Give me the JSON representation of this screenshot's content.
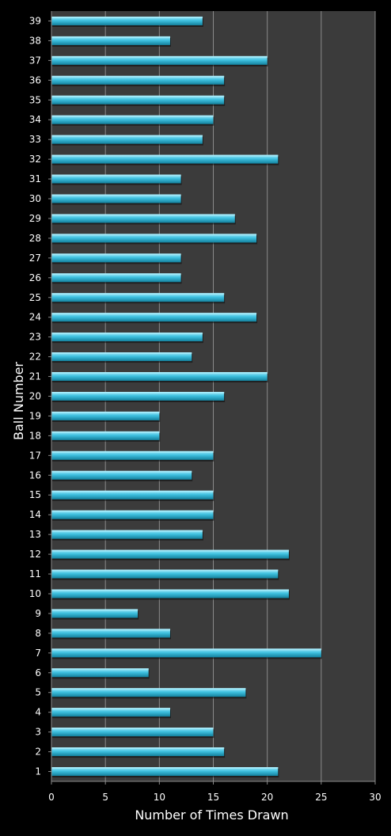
{
  "chart_data": {
    "type": "bar",
    "orientation": "horizontal",
    "title": "",
    "xlabel": "Number of Times Drawn",
    "ylabel": "Ball Number",
    "xlim": [
      0,
      30
    ],
    "xticks": [
      0,
      5,
      10,
      15,
      20,
      25,
      30
    ],
    "grid": "vertical",
    "legend": "none",
    "categories": [
      "1",
      "2",
      "3",
      "4",
      "5",
      "6",
      "7",
      "8",
      "9",
      "10",
      "11",
      "12",
      "13",
      "14",
      "15",
      "16",
      "17",
      "18",
      "19",
      "20",
      "21",
      "22",
      "23",
      "24",
      "25",
      "26",
      "27",
      "28",
      "29",
      "30",
      "31",
      "32",
      "33",
      "34",
      "35",
      "36",
      "37",
      "38",
      "39"
    ],
    "values": [
      21,
      16,
      15,
      11,
      18,
      9,
      25,
      11,
      8,
      22,
      21,
      22,
      14,
      15,
      15,
      13,
      15,
      10,
      10,
      16,
      20,
      13,
      14,
      19,
      16,
      12,
      12,
      19,
      17,
      12,
      12,
      21,
      14,
      15,
      16,
      16,
      20,
      11,
      14
    ],
    "colors": {
      "background": "#000000",
      "plot_area": "#3b3b3b",
      "gridline": "#8a8a8a",
      "bar_light": "#a8ecfb",
      "bar_main": "#3fc1e0",
      "bar_dark": "#13809c",
      "text": "#ffffff"
    }
  }
}
